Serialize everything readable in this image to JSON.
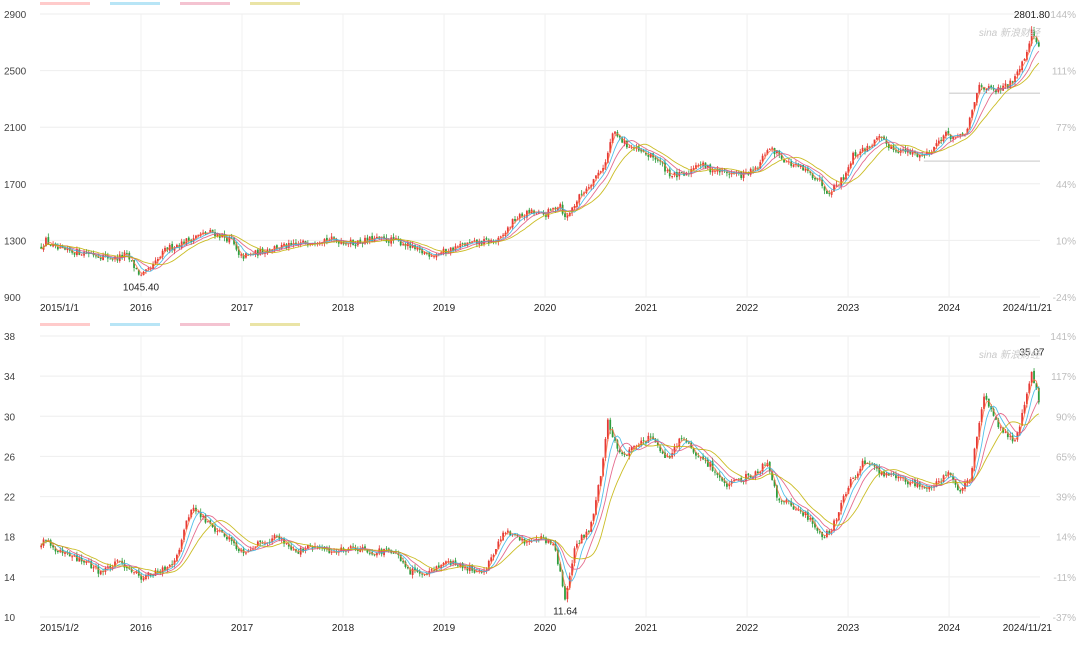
{
  "chart_data": [
    {
      "type": "candlestick",
      "x_ticks": [
        "2015/1/1",
        "2016",
        "2017",
        "2018",
        "2019",
        "2020",
        "2021",
        "2022",
        "2023",
        "2024",
        "2024/11/21"
      ],
      "x_range": [
        2015.0,
        2024.9
      ],
      "y_left_ticks": [
        "2900",
        "2500",
        "2100",
        "1700",
        "1300",
        "900"
      ],
      "y_left_range": [
        900,
        2900
      ],
      "y_right_ticks": [
        "144%",
        "111%",
        "77%",
        "44%",
        "10%",
        "-24%"
      ],
      "annotations": [
        {
          "label": "2801.80",
          "x": 2024.82,
          "y": 2801.8,
          "pos": "above"
        },
        {
          "label": "1045.40",
          "x": 2016.0,
          "y": 1045.4,
          "pos": "below"
        }
      ],
      "watermark": "sina 新浪财经",
      "legend_colors": [
        "#ff6b6b",
        "#33b5e5",
        "#e0527a",
        "#c2b200"
      ],
      "price_path": [
        [
          2015.0,
          1250
        ],
        [
          2015.06,
          1300
        ],
        [
          2015.15,
          1240
        ],
        [
          2015.25,
          1225
        ],
        [
          2015.35,
          1220
        ],
        [
          2015.5,
          1210
        ],
        [
          2015.6,
          1190
        ],
        [
          2015.75,
          1170
        ],
        [
          2015.85,
          1200
        ],
        [
          2016.0,
          1045.4
        ],
        [
          2016.1,
          1100
        ],
        [
          2016.25,
          1240
        ],
        [
          2016.4,
          1280
        ],
        [
          2016.55,
          1330
        ],
        [
          2016.7,
          1360
        ],
        [
          2016.9,
          1300
        ],
        [
          2016.97,
          1180
        ],
        [
          2017.1,
          1200
        ],
        [
          2017.3,
          1250
        ],
        [
          2017.5,
          1260
        ],
        [
          2017.65,
          1290
        ],
        [
          2017.8,
          1310
        ],
        [
          2017.95,
          1300
        ],
        [
          2018.1,
          1280
        ],
        [
          2018.3,
          1310
        ],
        [
          2018.5,
          1300
        ],
        [
          2018.6,
          1280
        ],
        [
          2018.75,
          1220
        ],
        [
          2018.9,
          1200
        ],
        [
          2019.0,
          1220
        ],
        [
          2019.2,
          1270
        ],
        [
          2019.4,
          1290
        ],
        [
          2019.55,
          1300
        ],
        [
          2019.7,
          1450
        ],
        [
          2019.85,
          1500
        ],
        [
          2020.0,
          1480
        ],
        [
          2020.15,
          1560
        ],
        [
          2020.2,
          1450
        ],
        [
          2020.35,
          1620
        ],
        [
          2020.5,
          1750
        ],
        [
          2020.6,
          1850
        ],
        [
          2020.67,
          2060
        ],
        [
          2020.8,
          1980
        ],
        [
          2020.95,
          1920
        ],
        [
          2021.1,
          1880
        ],
        [
          2021.25,
          1760
        ],
        [
          2021.4,
          1760
        ],
        [
          2021.5,
          1850
        ],
        [
          2021.65,
          1800
        ],
        [
          2021.8,
          1780
        ],
        [
          2021.95,
          1760
        ],
        [
          2022.1,
          1800
        ],
        [
          2022.2,
          1950
        ],
        [
          2022.3,
          1920
        ],
        [
          2022.4,
          1850
        ],
        [
          2022.55,
          1800
        ],
        [
          2022.7,
          1740
        ],
        [
          2022.8,
          1640
        ],
        [
          2022.95,
          1740
        ],
        [
          2023.05,
          1900
        ],
        [
          2023.2,
          1960
        ],
        [
          2023.3,
          2020
        ],
        [
          2023.45,
          1950
        ],
        [
          2023.6,
          1920
        ],
        [
          2023.75,
          1900
        ],
        [
          2023.85,
          1960
        ],
        [
          2023.95,
          2050
        ],
        [
          2024.1,
          2020
        ],
        [
          2024.18,
          2080
        ],
        [
          2024.3,
          2400
        ],
        [
          2024.45,
          2350
        ],
        [
          2024.6,
          2400
        ],
        [
          2024.75,
          2600
        ],
        [
          2024.82,
          2780
        ],
        [
          2024.9,
          2640
        ]
      ]
    },
    {
      "type": "candlestick",
      "x_ticks": [
        "2015/1/2",
        "2016",
        "2017",
        "2018",
        "2019",
        "2020",
        "2021",
        "2022",
        "2023",
        "2024",
        "2024/11/21"
      ],
      "x_range": [
        2015.0,
        2024.9
      ],
      "y_left_ticks": [
        "38",
        "34",
        "30",
        "26",
        "22",
        "18",
        "14",
        "10"
      ],
      "y_left_range": [
        10,
        38
      ],
      "y_right_ticks": [
        "141%",
        "117%",
        "90%",
        "65%",
        "39%",
        "14%",
        "-11%",
        "-37%"
      ],
      "annotations": [
        {
          "label": "35.07",
          "x": 2024.82,
          "y": 35.07,
          "pos": "above"
        },
        {
          "label": "11.64",
          "x": 2020.2,
          "y": 11.64,
          "pos": "below"
        }
      ],
      "watermark": "sina 新浪财经",
      "legend_colors": [
        "#ff6b6b",
        "#33b5e5",
        "#e0527a",
        "#c2b200"
      ],
      "price_path": [
        [
          2015.0,
          17
        ],
        [
          2015.06,
          18
        ],
        [
          2015.15,
          16.5
        ],
        [
          2015.3,
          16
        ],
        [
          2015.45,
          15.5
        ],
        [
          2015.6,
          14.5
        ],
        [
          2015.8,
          15.5
        ],
        [
          2016.0,
          14
        ],
        [
          2016.2,
          14.5
        ],
        [
          2016.35,
          16
        ],
        [
          2016.5,
          21
        ],
        [
          2016.7,
          19
        ],
        [
          2016.85,
          18
        ],
        [
          2017.0,
          16.5
        ],
        [
          2017.2,
          17.5
        ],
        [
          2017.35,
          18
        ],
        [
          2017.55,
          16.5
        ],
        [
          2017.7,
          17
        ],
        [
          2017.9,
          16.5
        ],
        [
          2018.1,
          17
        ],
        [
          2018.3,
          16.5
        ],
        [
          2018.5,
          16.5
        ],
        [
          2018.65,
          14.5
        ],
        [
          2018.85,
          14.5
        ],
        [
          2019.0,
          15.5
        ],
        [
          2019.2,
          15
        ],
        [
          2019.4,
          14.5
        ],
        [
          2019.6,
          18.5
        ],
        [
          2019.8,
          17.5
        ],
        [
          2019.95,
          18
        ],
        [
          2020.1,
          17
        ],
        [
          2020.2,
          11.64
        ],
        [
          2020.3,
          17
        ],
        [
          2020.45,
          19
        ],
        [
          2020.55,
          24
        ],
        [
          2020.62,
          29.5
        ],
        [
          2020.75,
          26
        ],
        [
          2020.9,
          27
        ],
        [
          2021.05,
          28
        ],
        [
          2021.2,
          25.5
        ],
        [
          2021.35,
          28
        ],
        [
          2021.5,
          26
        ],
        [
          2021.65,
          25
        ],
        [
          2021.8,
          23
        ],
        [
          2022.0,
          24
        ],
        [
          2022.1,
          24.5
        ],
        [
          2022.2,
          25.5
        ],
        [
          2022.3,
          22
        ],
        [
          2022.45,
          21
        ],
        [
          2022.6,
          20
        ],
        [
          2022.75,
          18
        ],
        [
          2022.85,
          19
        ],
        [
          2023.0,
          23
        ],
        [
          2023.15,
          25.5
        ],
        [
          2023.3,
          24.5
        ],
        [
          2023.45,
          24
        ],
        [
          2023.6,
          23.5
        ],
        [
          2023.75,
          23
        ],
        [
          2023.9,
          23.5
        ],
        [
          2024.0,
          24.5
        ],
        [
          2024.1,
          22.5
        ],
        [
          2024.2,
          23.5
        ],
        [
          2024.35,
          32
        ],
        [
          2024.5,
          29
        ],
        [
          2024.65,
          27.5
        ],
        [
          2024.75,
          31
        ],
        [
          2024.82,
          34.5
        ],
        [
          2024.9,
          31
        ]
      ]
    }
  ]
}
